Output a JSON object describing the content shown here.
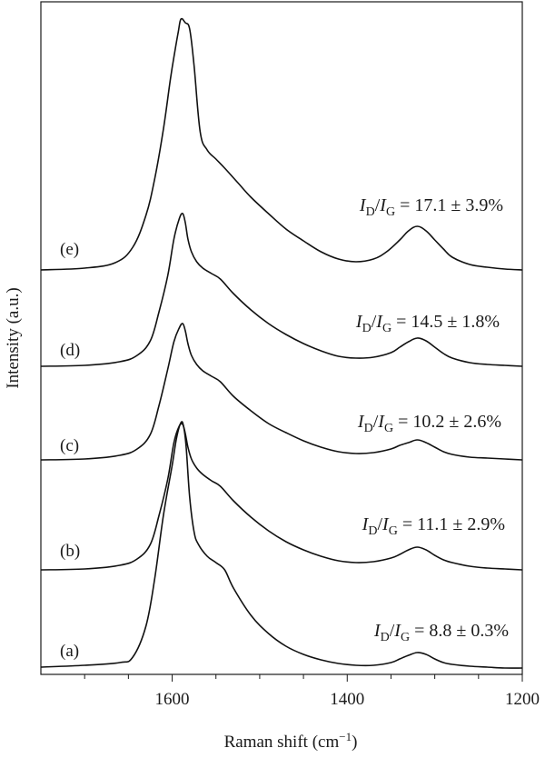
{
  "chart_data": {
    "type": "line",
    "xlabel_text": "Raman shift (cm",
    "xlabel_sup": "−1",
    "xlabel_close": ")",
    "ylabel": "Intensity (a.u.)",
    "xlim": [
      1750,
      1200
    ],
    "x_reversed": true,
    "x_ticks": [
      1600,
      1400,
      1200
    ],
    "y_ticks": [],
    "grid": false,
    "legend": "none",
    "line_color": "#111111",
    "series": [
      {
        "label": "(a)",
        "ratio_main": "I",
        "ratio_sub1": "D",
        "ratio_slash": "/",
        "ratio_sub2": "G",
        "ratio_value": "= 8.8 ± 0.3%",
        "baseline": 0,
        "x": [
          1750,
          1700,
          1660,
          1645,
          1630,
          1620,
          1610,
          1600,
          1595,
          1590,
          1587,
          1584,
          1580,
          1575,
          1570,
          1560,
          1550,
          1540,
          1530,
          1510,
          1490,
          1470,
          1450,
          1430,
          1410,
          1390,
          1370,
          1350,
          1340,
          1330,
          1320,
          1310,
          1300,
          1290,
          1280,
          1260,
          1240,
          1220,
          1200
        ],
        "y": [
          3,
          5,
          8,
          14,
          48,
          100,
          170,
          225,
          255,
          272,
          268,
          245,
          190,
          152,
          138,
          125,
          118,
          110,
          90,
          60,
          40,
          26,
          17,
          11,
          7,
          5,
          5,
          8,
          12,
          16,
          19,
          17,
          12,
          8,
          6,
          4,
          3,
          2,
          2
        ]
      },
      {
        "label": "(b)",
        "ratio_main": "I",
        "ratio_sub1": "D",
        "ratio_slash": "/",
        "ratio_sub2": "G",
        "ratio_value": "= 11.1 ± 2.9%",
        "baseline": 110,
        "x": [
          1750,
          1700,
          1660,
          1640,
          1625,
          1615,
          1605,
          1598,
          1592,
          1588,
          1585,
          1582,
          1578,
          1572,
          1565,
          1555,
          1545,
          1530,
          1510,
          1490,
          1470,
          1450,
          1430,
          1410,
          1390,
          1370,
          1350,
          1340,
          1330,
          1320,
          1310,
          1300,
          1290,
          1280,
          1260,
          1240,
          1220,
          1200
        ],
        "y": [
          0,
          1,
          5,
          12,
          28,
          60,
          100,
          140,
          158,
          160,
          150,
          135,
          122,
          112,
          105,
          98,
          92,
          76,
          58,
          43,
          31,
          22,
          15,
          10,
          8,
          9,
          13,
          17,
          22,
          25,
          22,
          16,
          11,
          8,
          4,
          2,
          1,
          0
        ]
      },
      {
        "label": "(c)",
        "ratio_main": "I",
        "ratio_sub1": "D",
        "ratio_slash": "/",
        "ratio_sub2": "G",
        "ratio_value": "= 10.2 ± 2.6%",
        "baseline": 231,
        "x": [
          1750,
          1700,
          1660,
          1640,
          1625,
          1615,
          1605,
          1598,
          1592,
          1588,
          1585,
          1582,
          1578,
          1572,
          1565,
          1555,
          1545,
          1530,
          1510,
          1490,
          1470,
          1450,
          1430,
          1410,
          1390,
          1370,
          1350,
          1340,
          1330,
          1320,
          1310,
          1300,
          1290,
          1280,
          1260,
          1240,
          1220,
          1200
        ],
        "y": [
          0,
          1,
          5,
          12,
          28,
          60,
          100,
          130,
          145,
          150,
          142,
          128,
          115,
          105,
          98,
          92,
          86,
          70,
          54,
          40,
          30,
          21,
          14,
          9,
          7,
          8,
          12,
          16,
          19,
          22,
          19,
          14,
          9,
          6,
          3,
          2,
          1,
          0
        ]
      },
      {
        "label": "(d)",
        "ratio_main": "I",
        "ratio_sub1": "D",
        "ratio_slash": "/",
        "ratio_sub2": "G",
        "ratio_value": "= 14.5 ± 1.8%",
        "baseline": 334,
        "x": [
          1750,
          1700,
          1660,
          1640,
          1625,
          1615,
          1605,
          1598,
          1592,
          1588,
          1585,
          1582,
          1578,
          1572,
          1565,
          1555,
          1545,
          1530,
          1510,
          1490,
          1470,
          1450,
          1430,
          1410,
          1390,
          1370,
          1350,
          1340,
          1330,
          1320,
          1310,
          1300,
          1290,
          1280,
          1260,
          1240,
          1220,
          1200
        ],
        "y": [
          0,
          1,
          5,
          12,
          28,
          60,
          100,
          140,
          162,
          168,
          158,
          140,
          126,
          115,
          108,
          102,
          96,
          80,
          62,
          47,
          35,
          25,
          17,
          11,
          9,
          10,
          15,
          21,
          27,
          31,
          28,
          21,
          14,
          9,
          4,
          2,
          1,
          0
        ]
      },
      {
        "label": "(e)",
        "ratio_main": "I",
        "ratio_sub1": "D",
        "ratio_slash": "/",
        "ratio_sub2": "G",
        "ratio_value": "= 17.1 ± 3.9%",
        "baseline": 440,
        "x": [
          1750,
          1700,
          1665,
          1645,
          1630,
          1620,
          1610,
          1602,
          1597,
          1593,
          1590,
          1585,
          1580,
          1575,
          1568,
          1560,
          1550,
          1540,
          1525,
          1510,
          1490,
          1470,
          1450,
          1430,
          1410,
          1390,
          1370,
          1355,
          1340,
          1330,
          1320,
          1310,
          1300,
          1290,
          1280,
          1260,
          1240,
          1220,
          1200
        ],
        "y": [
          0,
          2,
          8,
          25,
          60,
          100,
          155,
          210,
          240,
          262,
          276,
          272,
          265,
          225,
          152,
          132,
          122,
          112,
          96,
          80,
          62,
          45,
          32,
          20,
          12,
          9,
          12,
          20,
          33,
          43,
          48,
          43,
          33,
          23,
          14,
          6,
          3,
          1,
          0
        ]
      }
    ]
  }
}
